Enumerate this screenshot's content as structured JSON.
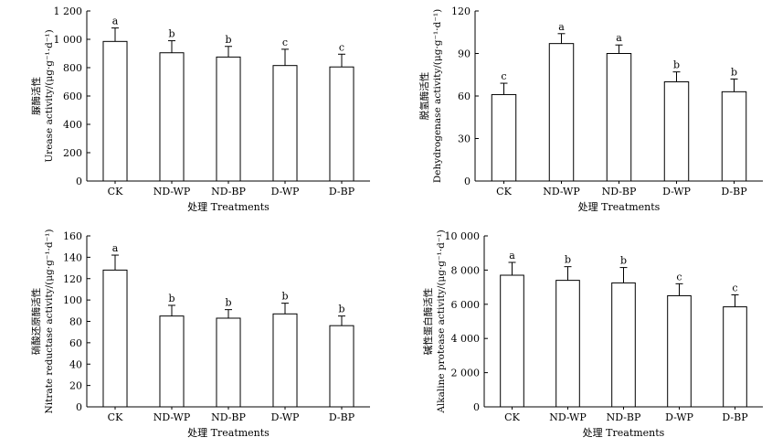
{
  "chart_data": [
    {
      "type": "bar",
      "categories": [
        "CK",
        "ND-WP",
        "ND-BP",
        "D-WP",
        "D-BP"
      ],
      "values": [
        985,
        905,
        875,
        815,
        805
      ],
      "errors": [
        95,
        85,
        75,
        115,
        90
      ],
      "letters": [
        "a",
        "b",
        "b",
        "c",
        "c"
      ],
      "ylabel_cn": "脲酶活性",
      "ylabel_en": "Urease activity/(μg·g⁻¹·d⁻¹)",
      "xlabel": "处理 Treatments",
      "ylim": [
        0,
        1200
      ],
      "yticks": [
        0,
        200,
        400,
        600,
        800,
        1000,
        1200
      ],
      "ytick_labels": [
        "0",
        "200",
        "400",
        "600",
        "800",
        "1 000",
        "1 200"
      ]
    },
    {
      "type": "bar",
      "categories": [
        "CK",
        "ND-WP",
        "ND-BP",
        "D-WP",
        "D-BP"
      ],
      "values": [
        61,
        97,
        90,
        70,
        63
      ],
      "errors": [
        8,
        7,
        6,
        7,
        9
      ],
      "letters": [
        "c",
        "a",
        "a",
        "b",
        "b"
      ],
      "ylabel_cn": "脱氢酶活性",
      "ylabel_en": "Dehydrogenase activity/(μg·g⁻¹·d⁻¹)",
      "xlabel": "处理 Treatments",
      "ylim": [
        0,
        120
      ],
      "yticks": [
        0,
        30,
        60,
        90,
        120
      ],
      "ytick_labels": [
        "0",
        "30",
        "60",
        "90",
        "120"
      ]
    },
    {
      "type": "bar",
      "categories": [
        "CK",
        "ND-WP",
        "ND-BP",
        "D-WP",
        "D-BP"
      ],
      "values": [
        128,
        85,
        83,
        87,
        76
      ],
      "errors": [
        14,
        10,
        8,
        10,
        9
      ],
      "letters": [
        "a",
        "b",
        "b",
        "b",
        "b"
      ],
      "ylabel_cn": "硝酸还原酶活性",
      "ylabel_en": "Nitrate reductase activity/(μg·g⁻¹·d⁻¹)",
      "xlabel": "处理 Treatments",
      "ylim": [
        0,
        160
      ],
      "yticks": [
        0,
        20,
        40,
        60,
        80,
        100,
        120,
        140,
        160
      ],
      "ytick_labels": [
        "0",
        "20",
        "40",
        "60",
        "80",
        "100",
        "120",
        "140",
        "160"
      ]
    },
    {
      "type": "bar",
      "categories": [
        "CK",
        "ND-WP",
        "ND-BP",
        "D-WP",
        "D-BP"
      ],
      "values": [
        7700,
        7400,
        7250,
        6500,
        5850
      ],
      "errors": [
        750,
        800,
        900,
        700,
        700
      ],
      "letters": [
        "a",
        "b",
        "b",
        "c",
        "c"
      ],
      "ylabel_cn": "碱性蛋白酶活性",
      "ylabel_en": "Alkaline protease activity/(μg·g⁻¹·d⁻¹)",
      "xlabel": "处理 Treatments",
      "ylim": [
        0,
        10000
      ],
      "yticks": [
        0,
        2000,
        4000,
        6000,
        8000,
        10000
      ],
      "ytick_labels": [
        "0",
        "2 000",
        "4 000",
        "6 000",
        "8 000",
        "10 000"
      ]
    }
  ]
}
